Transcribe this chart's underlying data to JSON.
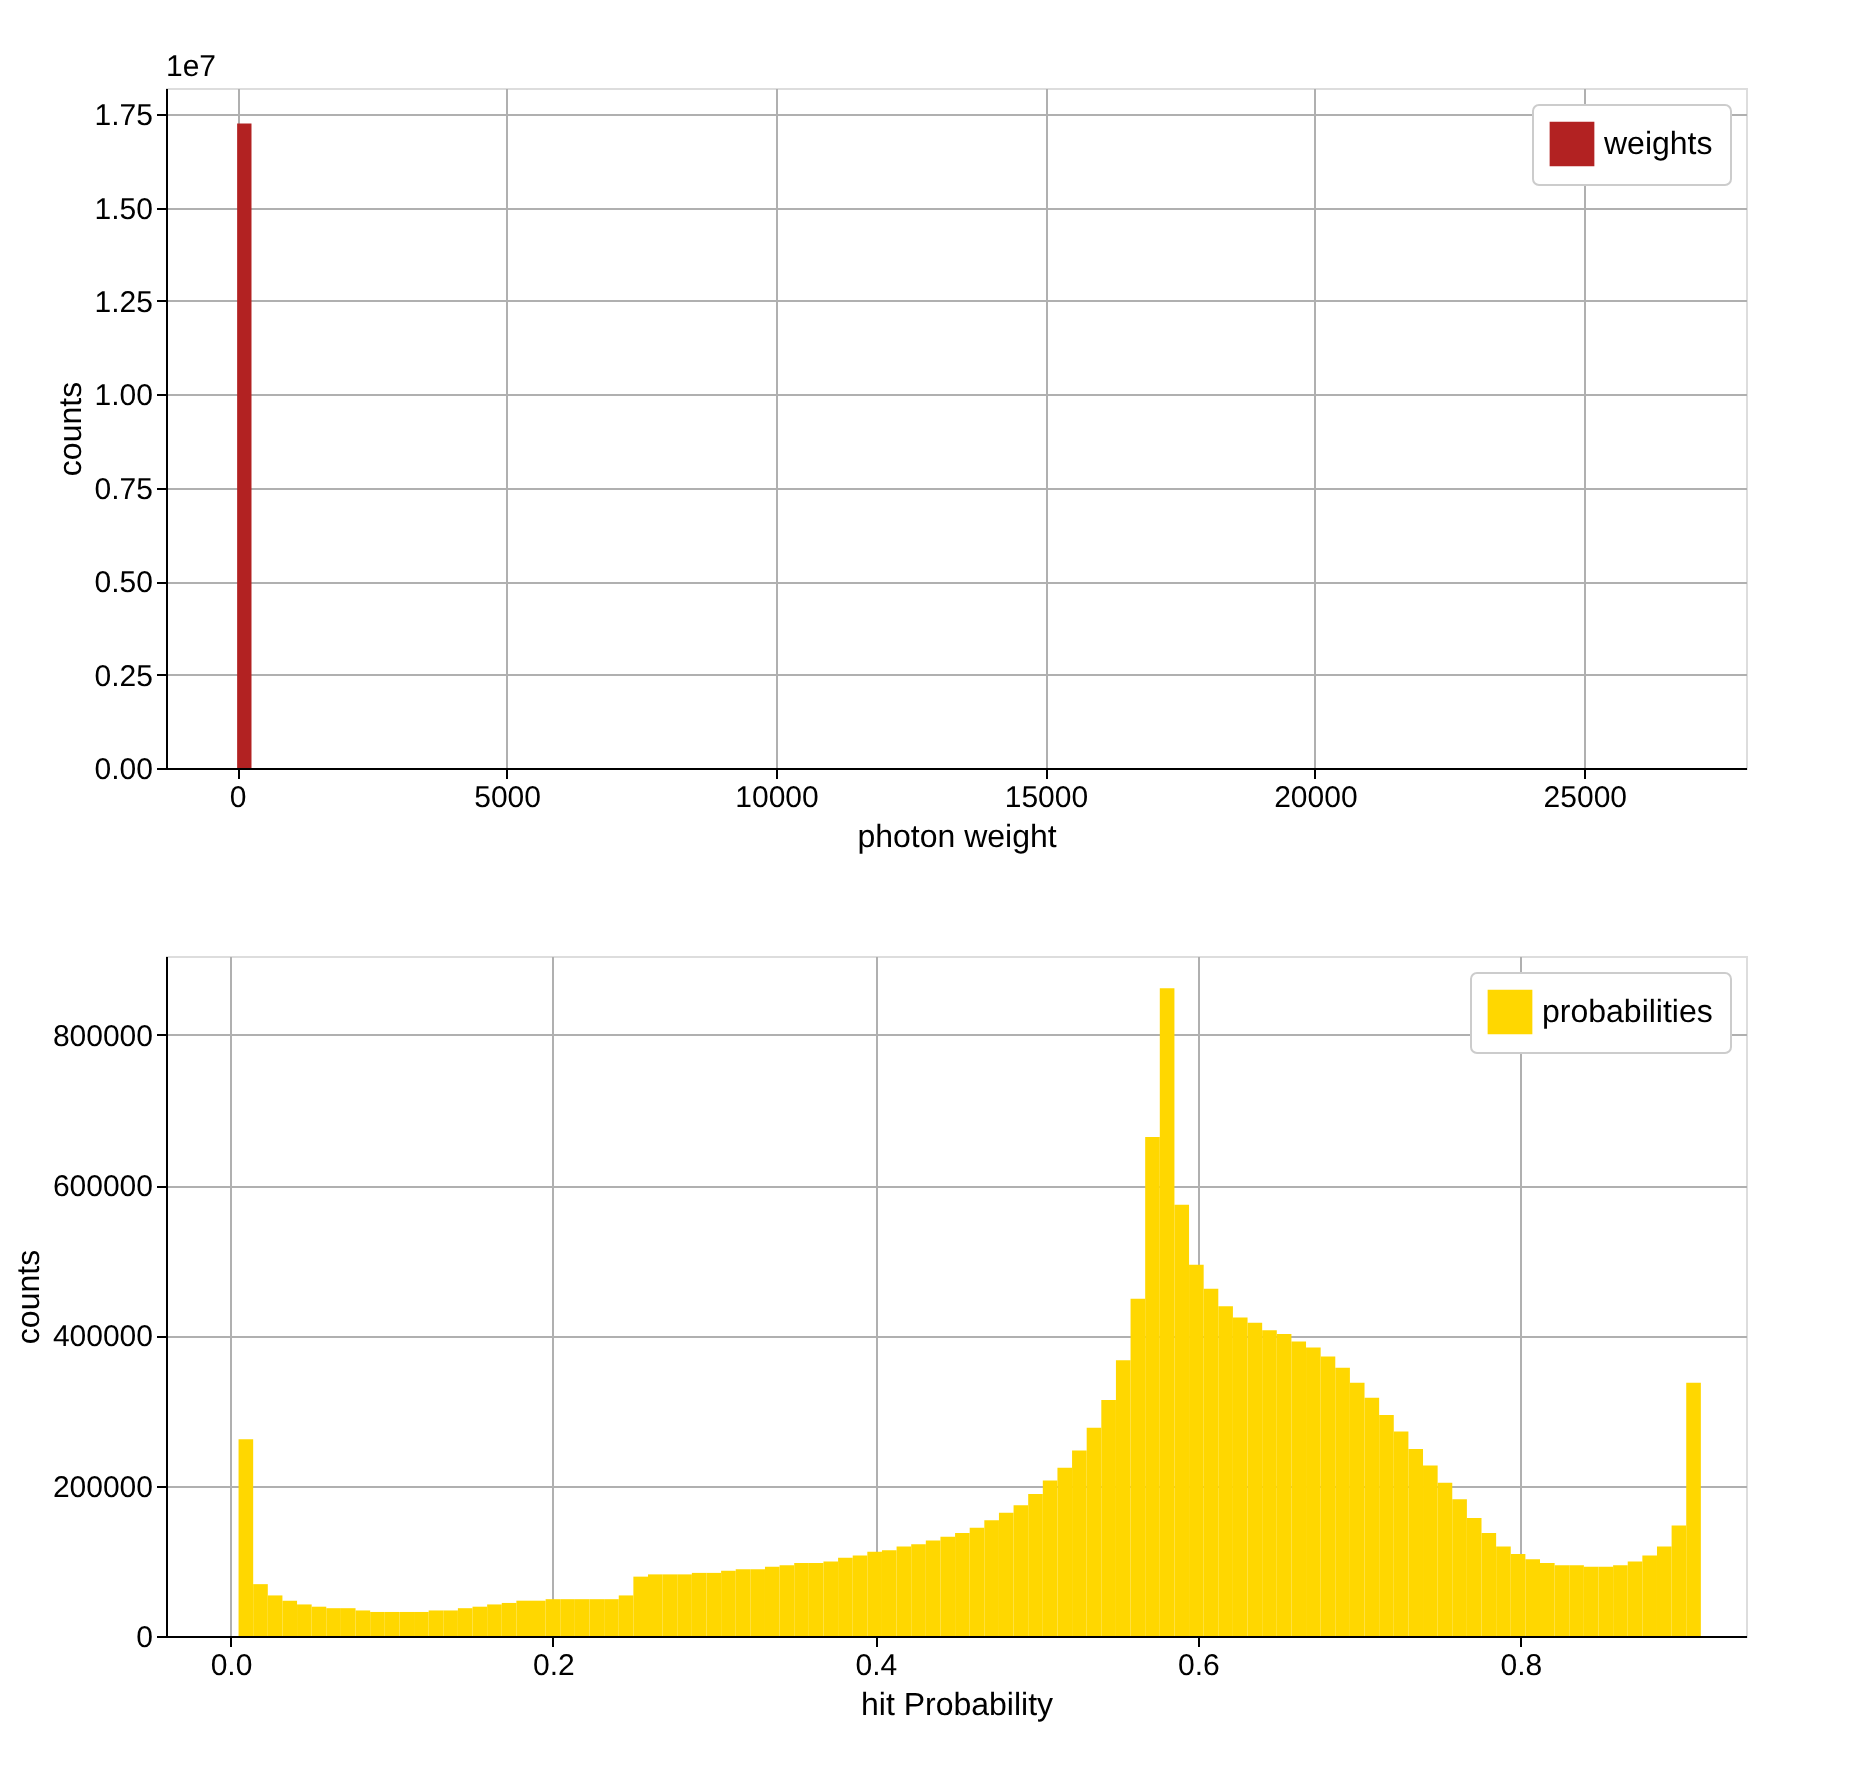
{
  "chart_data": [
    {
      "type": "histogram",
      "xlabel": "photon weight",
      "ylabel": "counts",
      "annotations": [
        "1e7"
      ],
      "bins": [
        0,
        266.5
      ],
      "series": [
        {
          "name": "weights",
          "color": "#b22222",
          "values": [
            1.725
          ]
        }
      ],
      "xlim": [
        -1320,
        28000
      ],
      "xticks": [
        0,
        5000,
        10000,
        15000,
        20000,
        25000
      ],
      "ylim": [
        0,
        1.82
      ],
      "yticks": [
        {
          "value": 0,
          "label": "0.00"
        },
        {
          "value": 0.25,
          "label": "0.25"
        },
        {
          "value": 0.5,
          "label": "0.50"
        },
        {
          "value": 0.75,
          "label": "0.75"
        },
        {
          "value": 1,
          "label": "1.00"
        },
        {
          "value": 1.25,
          "label": "1.25"
        },
        {
          "value": 1.5,
          "label": "1.50"
        },
        {
          "value": 1.75,
          "label": "1.75"
        }
      ],
      "grid": true,
      "legend": "top right"
    },
    {
      "type": "histogram",
      "xlabel": "hit Probability",
      "ylabel": "counts",
      "bins": [
        0.005,
        0.01407,
        0.02314,
        0.03221,
        0.04128,
        0.05035,
        0.05942,
        0.06849,
        0.07756,
        0.08663,
        0.0957,
        0.10477,
        0.11384,
        0.12291,
        0.13198,
        0.14105,
        0.15012,
        0.15919,
        0.16826,
        0.17733,
        0.1864,
        0.19547,
        0.20454,
        0.21361,
        0.22268,
        0.23175,
        0.24082,
        0.24989,
        0.25896,
        0.26803,
        0.2771,
        0.28617,
        0.29524,
        0.30431,
        0.31338,
        0.32245,
        0.33152,
        0.34059,
        0.34966,
        0.35873,
        0.3678,
        0.37687,
        0.38594,
        0.39501,
        0.40408,
        0.41315,
        0.42222,
        0.43129,
        0.44036,
        0.44943,
        0.4585,
        0.46757,
        0.47664,
        0.48571,
        0.49478,
        0.50385,
        0.51292,
        0.52199,
        0.53106,
        0.54013,
        0.5492,
        0.55827,
        0.56734,
        0.57641,
        0.58548,
        0.59455,
        0.60362,
        0.61269,
        0.62176,
        0.63083,
        0.6399,
        0.64897,
        0.65804,
        0.66711,
        0.67618,
        0.68525,
        0.69432,
        0.70339,
        0.71246,
        0.72153,
        0.7306,
        0.73967,
        0.74874,
        0.75781,
        0.76688,
        0.77595,
        0.78502,
        0.79409,
        0.80316,
        0.81223,
        0.8213,
        0.83037,
        0.83944,
        0.84851,
        0.85758,
        0.86665,
        0.87572,
        0.88479,
        0.89386,
        0.90293,
        0.912
      ],
      "series": [
        {
          "name": "probabilities",
          "color": "#ffd700",
          "values": [
            262000,
            69000,
            54000,
            47000,
            42000,
            39000,
            37000,
            37000,
            34000,
            32000,
            32000,
            32000,
            32000,
            34000,
            34000,
            37000,
            39000,
            42000,
            44000,
            47000,
            47000,
            49000,
            49000,
            49000,
            49000,
            49000,
            54000,
            79000,
            82000,
            82000,
            82000,
            84000,
            84000,
            87000,
            89000,
            89000,
            92000,
            94000,
            97000,
            97000,
            99000,
            104000,
            107000,
            112000,
            114000,
            119000,
            122000,
            127000,
            132000,
            137000,
            144000,
            154000,
            164000,
            174000,
            189000,
            207000,
            224000,
            247000,
            277000,
            314000,
            367000,
            449000,
            664000,
            862000,
            574000,
            494000,
            462000,
            439000,
            424000,
            417000,
            407000,
            402000,
            392000,
            384000,
            372000,
            357000,
            337000,
            317000,
            294000,
            272000,
            249000,
            227000,
            204000,
            182000,
            157000,
            137000,
            119000,
            109000,
            102000,
            97000,
            94000,
            94000,
            92000,
            92000,
            94000,
            99000,
            107000,
            119000,
            147000,
            337000
          ]
        }
      ],
      "xlim": [
        -0.04,
        0.94
      ],
      "xticks": [
        {
          "value": 0,
          "label": "0.0"
        },
        {
          "value": 0.2,
          "label": "0.2"
        },
        {
          "value": 0.4,
          "label": "0.4"
        },
        {
          "value": 0.6,
          "label": "0.6"
        },
        {
          "value": 0.8,
          "label": "0.8"
        }
      ],
      "ylim": [
        0,
        905000
      ],
      "yticks": [
        0,
        200000,
        400000,
        600000,
        800000
      ],
      "grid": true,
      "legend": "top right"
    }
  ]
}
